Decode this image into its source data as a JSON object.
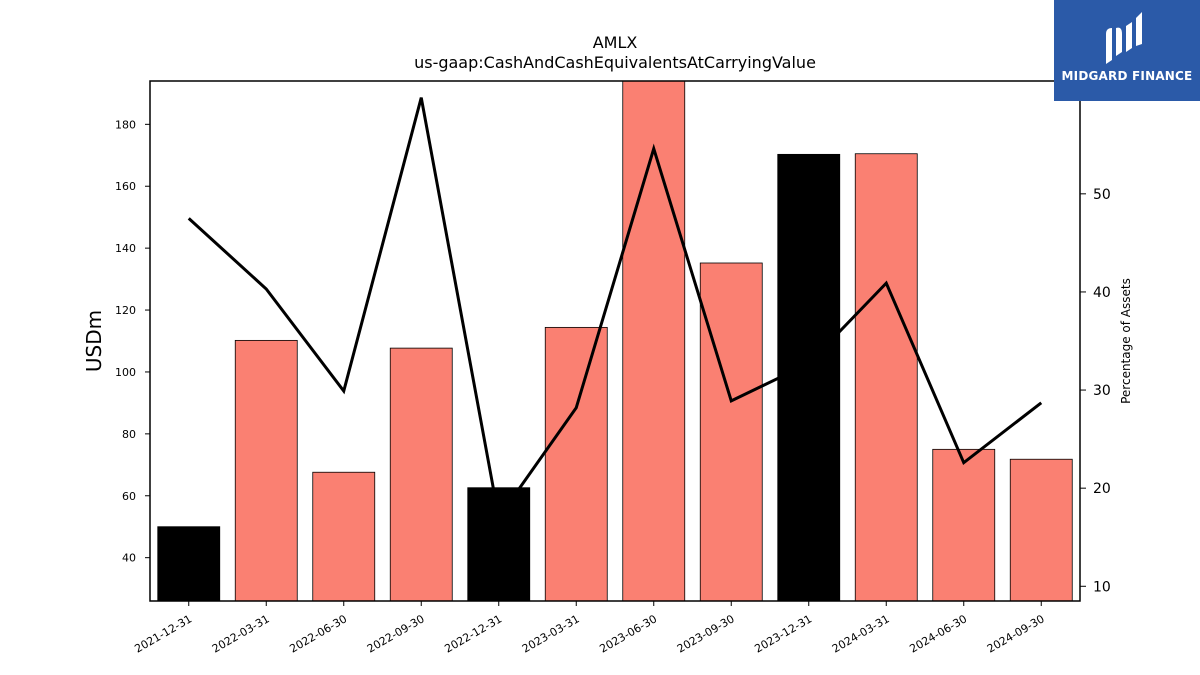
{
  "chart_data": {
    "type": "bar",
    "title": "AMLX",
    "subtitle": "us-gaap:CashAndCashEquivalentsAtCarryingValue",
    "ylabel": "USDm",
    "y2label": "Percentage of Assets",
    "ylim": [
      26,
      194
    ],
    "y2lim": [
      8.5,
      61.5
    ],
    "yticks": [
      40,
      60,
      80,
      100,
      120,
      140,
      160,
      180
    ],
    "y2ticks": [
      10,
      20,
      30,
      40,
      50
    ],
    "categories": [
      "2021-12-31",
      "2022-03-31",
      "2022-06-30",
      "2022-09-30",
      "2022-12-31",
      "2023-03-31",
      "2023-06-30",
      "2023-09-30",
      "2023-12-31",
      "2024-03-31",
      "2024-06-30",
      "2024-09-30"
    ],
    "series": [
      {
        "type": "bar",
        "values": [
          50.0,
          110.2,
          67.6,
          107.7,
          62.6,
          114.4,
          196.0,
          135.2,
          170.3,
          170.5,
          75.0,
          71.8
        ],
        "colors": [
          "#000000",
          "#fa8072",
          "#fa8072",
          "#fa8072",
          "#000000",
          "#fa8072",
          "#fa8072",
          "#fa8072",
          "#000000",
          "#fa8072",
          "#fa8072",
          "#fa8072"
        ]
      },
      {
        "type": "line",
        "axis": "right",
        "color": "#000000",
        "values": [
          47.5,
          40.3,
          29.9,
          59.8,
          17.0,
          28.2,
          54.6,
          28.9,
          32.7,
          40.9,
          22.6,
          28.7
        ]
      }
    ],
    "grid": false
  },
  "logo": {
    "text": "MIDGARD FINANCE",
    "color": "#2b5aa8"
  }
}
